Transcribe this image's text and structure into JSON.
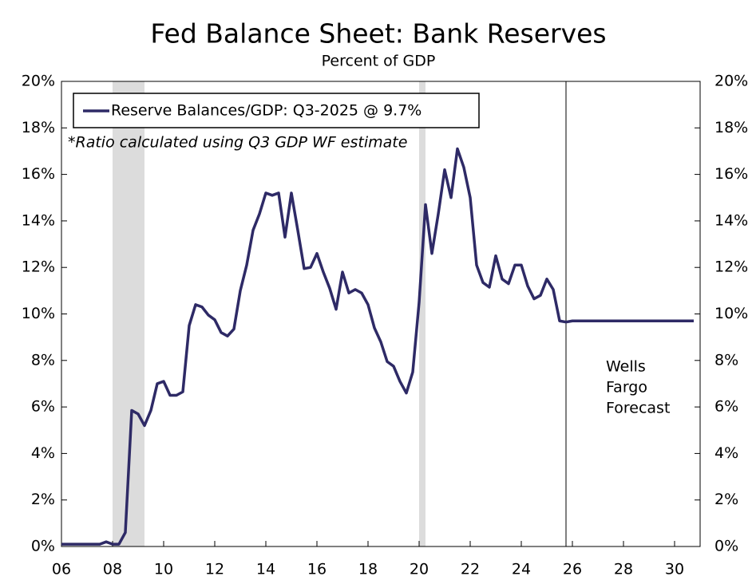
{
  "chart_data": {
    "type": "line",
    "title": "Fed Balance Sheet: Bank Reserves",
    "subtitle": "Percent of GDP",
    "note": "*Ratio calculated using Q3 GDP WF estimate",
    "annotation": [
      "Wells",
      "Fargo",
      "Forecast"
    ],
    "forecast_start": 2025.75,
    "shaded_regions": [
      [
        2008.0,
        2009.25
      ],
      [
        2020.0,
        2020.25
      ]
    ],
    "shade_color": "#dcdcdc",
    "legend": "upper left",
    "x": [
      2006,
      2006.25,
      2006.5,
      2006.75,
      2007,
      2007.25,
      2007.5,
      2007.75,
      2008,
      2008.25,
      2008.5,
      2008.75,
      2009,
      2009.25,
      2009.5,
      2009.75,
      2010,
      2010.25,
      2010.5,
      2010.75,
      2011,
      2011.25,
      2011.5,
      2011.75,
      2012,
      2012.25,
      2012.5,
      2012.75,
      2013,
      2013.25,
      2013.5,
      2013.75,
      2014,
      2014.25,
      2014.5,
      2014.75,
      2015,
      2015.25,
      2015.5,
      2015.75,
      2016,
      2016.25,
      2016.5,
      2016.75,
      2017,
      2017.25,
      2017.5,
      2017.75,
      2018,
      2018.25,
      2018.5,
      2018.75,
      2019,
      2019.25,
      2019.5,
      2019.75,
      2020,
      2020.25,
      2020.5,
      2020.75,
      2021,
      2021.25,
      2021.5,
      2021.75,
      2022,
      2022.25,
      2022.5,
      2022.75,
      2023,
      2023.25,
      2023.5,
      2023.75,
      2024,
      2024.25,
      2024.5,
      2024.75,
      2025,
      2025.25,
      2025.5,
      2025.75,
      2026,
      2026.25,
      2026.5,
      2026.75,
      2027,
      2027.25,
      2027.5,
      2027.75,
      2028,
      2028.25,
      2028.5,
      2028.75,
      2029,
      2029.25,
      2029.5,
      2029.75,
      2030,
      2030.25,
      2030.5,
      2030.75
    ],
    "series": [
      {
        "name": "Reserve Balances/GDP: Q3-2025 @ 9.7%",
        "color": "#2e2a66",
        "values": [
          0.1,
          0.1,
          0.1,
          0.1,
          0.1,
          0.1,
          0.1,
          0.2,
          0.1,
          0.1,
          0.6,
          5.85,
          5.7,
          5.2,
          5.85,
          7.0,
          7.1,
          6.5,
          6.5,
          6.65,
          9.5,
          10.4,
          10.3,
          9.95,
          9.75,
          9.2,
          9.05,
          9.35,
          11.0,
          12.1,
          13.6,
          14.3,
          15.2,
          15.1,
          15.2,
          13.3,
          15.2,
          13.6,
          11.95,
          12.0,
          12.6,
          11.8,
          11.1,
          10.2,
          11.8,
          10.9,
          11.05,
          10.9,
          10.4,
          9.4,
          8.8,
          7.95,
          7.75,
          7.1,
          6.6,
          7.5,
          10.5,
          14.7,
          12.6,
          14.3,
          16.2,
          15.0,
          17.1,
          16.3,
          15.0,
          12.1,
          11.35,
          11.15,
          12.5,
          11.5,
          11.3,
          12.1,
          12.1,
          11.2,
          10.65,
          10.8,
          11.5,
          11.05,
          9.7,
          9.65,
          9.7,
          9.7,
          9.7,
          9.7,
          9.7,
          9.7,
          9.7,
          9.7,
          9.7,
          9.7,
          9.7,
          9.7,
          9.7,
          9.7,
          9.7,
          9.7,
          9.7,
          9.7,
          9.7,
          9.7
        ]
      }
    ],
    "xlim": [
      2006,
      2031
    ],
    "xticks": [
      {
        "value": 2006,
        "label": "06"
      },
      {
        "value": 2008,
        "label": "08"
      },
      {
        "value": 2010,
        "label": "10"
      },
      {
        "value": 2012,
        "label": "12"
      },
      {
        "value": 2014,
        "label": "14"
      },
      {
        "value": 2016,
        "label": "16"
      },
      {
        "value": 2018,
        "label": "18"
      },
      {
        "value": 2020,
        "label": "20"
      },
      {
        "value": 2022,
        "label": "22"
      },
      {
        "value": 2024,
        "label": "24"
      },
      {
        "value": 2026,
        "label": "26"
      },
      {
        "value": 2028,
        "label": "28"
      },
      {
        "value": 2030,
        "label": "30"
      }
    ],
    "ylim": [
      0,
      20
    ],
    "yticks": [
      {
        "value": 0,
        "label": "0%"
      },
      {
        "value": 2,
        "label": "2%"
      },
      {
        "value": 4,
        "label": "4%"
      },
      {
        "value": 6,
        "label": "6%"
      },
      {
        "value": 8,
        "label": "8%"
      },
      {
        "value": 10,
        "label": "10%"
      },
      {
        "value": 12,
        "label": "12%"
      },
      {
        "value": 14,
        "label": "14%"
      },
      {
        "value": 16,
        "label": "16%"
      },
      {
        "value": 18,
        "label": "18%"
      },
      {
        "value": 20,
        "label": "20%"
      }
    ],
    "y2lim": [
      0,
      20
    ],
    "y2ticks": [
      {
        "value": 0,
        "label": "0%"
      },
      {
        "value": 2,
        "label": "2%"
      },
      {
        "value": 4,
        "label": "4%"
      },
      {
        "value": 6,
        "label": "6%"
      },
      {
        "value": 8,
        "label": "8%"
      },
      {
        "value": 10,
        "label": "10%"
      },
      {
        "value": 12,
        "label": "12%"
      },
      {
        "value": 14,
        "label": "14%"
      },
      {
        "value": 16,
        "label": "16%"
      },
      {
        "value": 18,
        "label": "18%"
      },
      {
        "value": 20,
        "label": "20%"
      }
    ]
  }
}
